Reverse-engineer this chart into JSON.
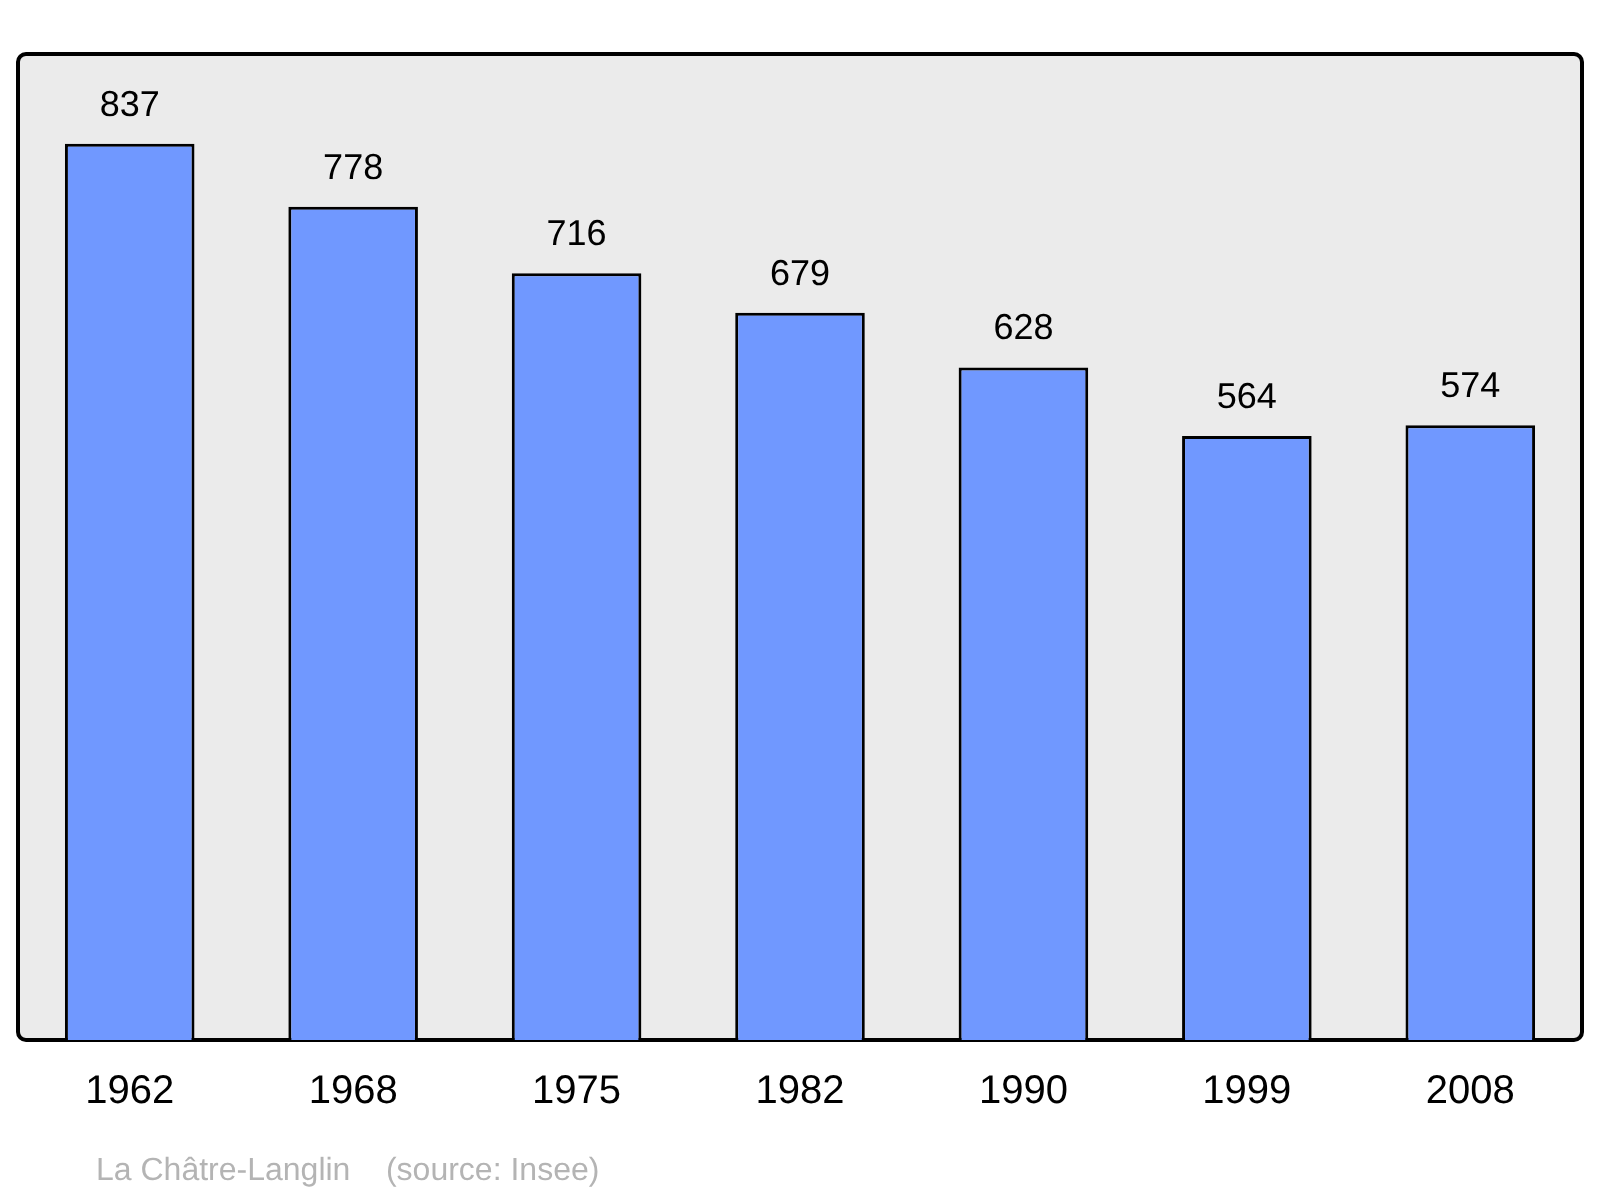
{
  "chart_data": {
    "type": "bar",
    "categories": [
      "1962",
      "1968",
      "1975",
      "1982",
      "1990",
      "1999",
      "2008"
    ],
    "values": [
      837,
      778,
      716,
      679,
      628,
      564,
      574
    ],
    "color": "#7098ff",
    "data_labels": true,
    "grid": false,
    "legend": false,
    "annotations": [
      "La Châtre-Langlin    (source: Insee)"
    ]
  }
}
